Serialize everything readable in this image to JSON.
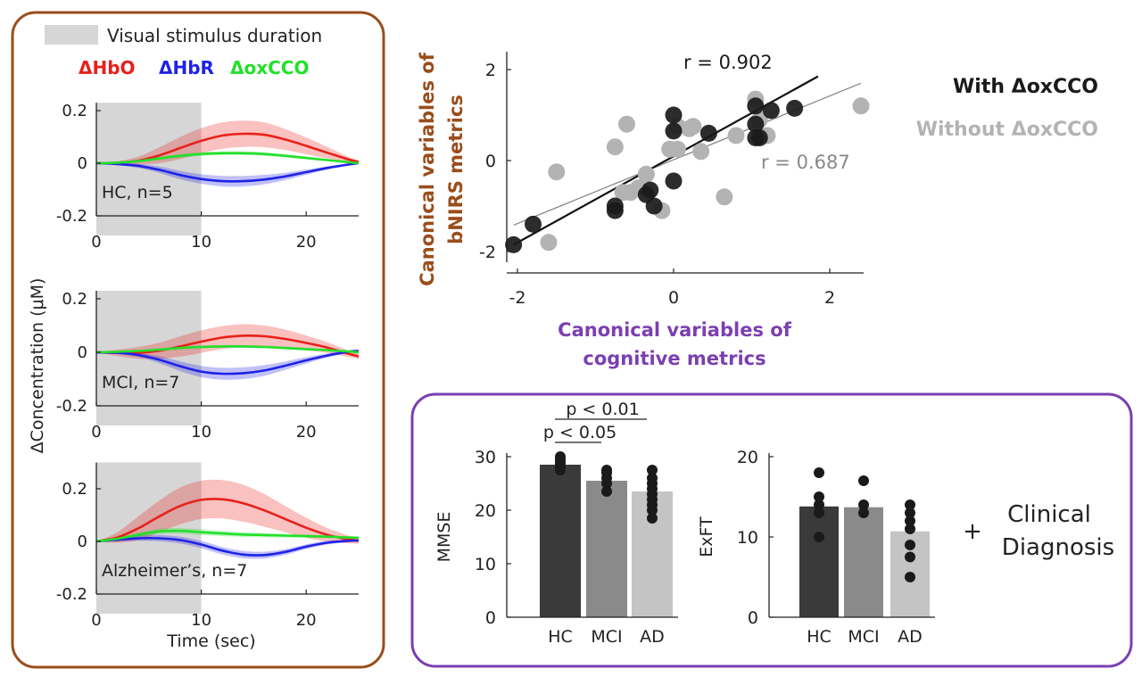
{
  "colors": {
    "hbo": "#e8201a",
    "hbr": "#1f22e6",
    "oxcco": "#22e02a",
    "stimulus": "#d6d6d6",
    "left_frame": "#9a4d1b",
    "right_frame": "#7b3fb0",
    "with_points": "#1a1a1a",
    "without_points": "#b3b3b3",
    "bar_hc": "#3a3a3a",
    "bar_mci": "#8a8a8a",
    "bar_ad": "#c4c4c4"
  },
  "left_panel": {
    "stimulus_label": "Visual stimulus duration",
    "legend": [
      {
        "label": "ΔHbO",
        "color_key": "hbo"
      },
      {
        "label": "ΔHbR",
        "color_key": "hbr"
      },
      {
        "label": "ΔoxCCO",
        "color_key": "oxcco"
      }
    ],
    "ylabel": "ΔConcentration (μM)",
    "xlabel": "Time (sec)"
  },
  "right_panel": {
    "plus": "+",
    "diagnosis_line1": "Clinical",
    "diagnosis_line2": "Diagnosis"
  },
  "chart_data": [
    {
      "type": "line",
      "label": "HC, n=5",
      "x_ticks": [
        0,
        10,
        20
      ],
      "y_ticks": [
        -0.2,
        0,
        0.2
      ],
      "y_tick_labels": [
        "-0.2",
        "0",
        "0.2"
      ],
      "xlim": [
        0,
        25
      ],
      "ylim": [
        -0.2,
        0.23
      ],
      "stimulus": [
        0,
        10
      ],
      "x": [
        0,
        2,
        4,
        6,
        8,
        10,
        12,
        14,
        16,
        18,
        20,
        22,
        24,
        25
      ],
      "series": [
        {
          "color_key": "hbo",
          "values": [
            0,
            0.002,
            0.01,
            0.03,
            0.058,
            0.085,
            0.105,
            0.112,
            0.108,
            0.09,
            0.066,
            0.04,
            0.015,
            0.005
          ],
          "band": [
            0,
            0.005,
            0.015,
            0.03,
            0.042,
            0.048,
            0.05,
            0.05,
            0.047,
            0.04,
            0.032,
            0.022,
            0.01,
            0.005
          ]
        },
        {
          "color_key": "hbr",
          "values": [
            0,
            -0.003,
            -0.01,
            -0.025,
            -0.045,
            -0.06,
            -0.068,
            -0.068,
            -0.062,
            -0.05,
            -0.034,
            -0.018,
            -0.005,
            0
          ],
          "band": [
            0,
            0.004,
            0.008,
            0.012,
            0.016,
            0.018,
            0.02,
            0.02,
            0.018,
            0.014,
            0.01,
            0.006,
            0.003,
            0.002
          ]
        },
        {
          "color_key": "oxcco",
          "values": [
            0,
            0.002,
            0.008,
            0.018,
            0.028,
            0.035,
            0.038,
            0.038,
            0.035,
            0.028,
            0.02,
            0.012,
            0.004,
            0
          ],
          "band": [
            0,
            0.003,
            0.005,
            0.006,
            0.007,
            0.007,
            0.007,
            0.007,
            0.007,
            0.006,
            0.005,
            0.004,
            0.003,
            0.002
          ]
        }
      ]
    },
    {
      "type": "line",
      "label": "MCI, n=7",
      "x_ticks": [
        0,
        10,
        20
      ],
      "y_ticks": [
        -0.2,
        0,
        0.2
      ],
      "y_tick_labels": [
        "-0.2",
        "0",
        "0.2"
      ],
      "xlim": [
        0,
        25
      ],
      "ylim": [
        -0.2,
        0.23
      ],
      "stimulus": [
        0,
        10
      ],
      "x": [
        0,
        2,
        4,
        6,
        8,
        10,
        12,
        14,
        16,
        18,
        20,
        22,
        24,
        25
      ],
      "series": [
        {
          "color_key": "hbo",
          "values": [
            0,
            -0.002,
            -0.002,
            0.006,
            0.022,
            0.04,
            0.055,
            0.062,
            0.06,
            0.05,
            0.035,
            0.018,
            -0.005,
            -0.015
          ],
          "band": [
            0,
            0.012,
            0.022,
            0.03,
            0.038,
            0.042,
            0.043,
            0.043,
            0.04,
            0.035,
            0.028,
            0.02,
            0.012,
            0.01
          ]
        },
        {
          "color_key": "hbr",
          "values": [
            0,
            -0.002,
            -0.01,
            -0.028,
            -0.052,
            -0.072,
            -0.08,
            -0.078,
            -0.068,
            -0.05,
            -0.03,
            -0.012,
            0.002,
            0.005
          ],
          "band": [
            0,
            0.004,
            0.008,
            0.013,
            0.018,
            0.021,
            0.022,
            0.022,
            0.02,
            0.016,
            0.012,
            0.008,
            0.005,
            0.004
          ]
        },
        {
          "color_key": "oxcco",
          "values": [
            0,
            0.002,
            0.005,
            0.01,
            0.016,
            0.02,
            0.022,
            0.022,
            0.02,
            0.016,
            0.012,
            0.008,
            0.003,
            0
          ],
          "band": [
            0,
            0.003,
            0.004,
            0.005,
            0.005,
            0.005,
            0.005,
            0.005,
            0.005,
            0.005,
            0.004,
            0.003,
            0.003,
            0.002
          ]
        }
      ]
    },
    {
      "type": "line",
      "label": "Alzheimer’s, n=7",
      "x_ticks": [
        0,
        10,
        20
      ],
      "y_ticks": [
        -0.2,
        0,
        0.2
      ],
      "y_tick_labels": [
        "-0.2",
        "0",
        "0.2"
      ],
      "xlim": [
        0,
        25
      ],
      "ylim": [
        -0.2,
        0.3
      ],
      "stimulus": [
        0,
        10
      ],
      "x": [
        0,
        2,
        4,
        6,
        8,
        10,
        12,
        14,
        16,
        18,
        20,
        22,
        24,
        25
      ],
      "series": [
        {
          "color_key": "hbo",
          "values": [
            0,
            0.015,
            0.05,
            0.095,
            0.135,
            0.158,
            0.16,
            0.145,
            0.118,
            0.085,
            0.052,
            0.025,
            0.008,
            0.003
          ],
          "band": [
            0,
            0.02,
            0.045,
            0.06,
            0.07,
            0.073,
            0.073,
            0.07,
            0.062,
            0.05,
            0.038,
            0.026,
            0.015,
            0.012
          ]
        },
        {
          "color_key": "hbr",
          "values": [
            0,
            0.006,
            0.012,
            0.012,
            0.005,
            -0.012,
            -0.035,
            -0.05,
            -0.052,
            -0.04,
            -0.02,
            -0.005,
            0.002,
            0.003
          ],
          "band": [
            0,
            0.006,
            0.01,
            0.012,
            0.013,
            0.014,
            0.014,
            0.014,
            0.013,
            0.011,
            0.009,
            0.007,
            0.005,
            0.004
          ]
        },
        {
          "color_key": "oxcco",
          "values": [
            0,
            0.01,
            0.025,
            0.038,
            0.04,
            0.035,
            0.03,
            0.026,
            0.024,
            0.022,
            0.02,
            0.018,
            0.015,
            0.014
          ],
          "band": [
            0,
            0.005,
            0.008,
            0.01,
            0.011,
            0.011,
            0.01,
            0.009,
            0.008,
            0.007,
            0.006,
            0.005,
            0.004,
            0.004
          ]
        }
      ]
    },
    {
      "type": "scatter",
      "xlabel": [
        "Canonical variables of",
        "cognitive metrics"
      ],
      "ylabel": [
        "Canonical variables of",
        "bNIRS metrics"
      ],
      "xlim": [
        -2.1,
        2.5
      ],
      "ylim": [
        -2.15,
        2.15
      ],
      "x_ticks": [
        -2,
        0,
        2
      ],
      "x_tick_labels": [
        "-2",
        "0",
        "2"
      ],
      "y_ticks": [
        -2,
        0,
        2
      ],
      "y_tick_labels": [
        "-2",
        "0",
        "2"
      ],
      "legend": [
        {
          "label": "With ΔoxCCO",
          "color_key": "with_points"
        },
        {
          "label": "Without ΔoxCCO",
          "color_key": "without_points"
        }
      ],
      "annotations": [
        {
          "text": "r = 0.902",
          "color_key": "with_points"
        },
        {
          "text": "r = 0.687",
          "color": "#888888"
        }
      ],
      "series": [
        {
          "name": "Without ΔoxCCO",
          "color_key": "without_points",
          "fit": {
            "x": [
              -2.05,
              2.4
            ],
            "y": [
              -1.42,
              1.7
            ]
          },
          "x": [
            -1.5,
            -1.6,
            -0.6,
            -0.55,
            -0.75,
            -0.35,
            -0.45,
            0.05,
            -0.05,
            0.25,
            0.2,
            0.35,
            0.8,
            1.1,
            1.2,
            1.05,
            0.65,
            -0.15,
            2.4,
            -0.65,
            0.05
          ],
          "y": [
            -0.25,
            -1.8,
            0.8,
            -0.7,
            0.3,
            -0.3,
            -0.6,
            0.75,
            0.25,
            0.75,
            0.7,
            0.2,
            0.55,
            0.9,
            0.55,
            1.35,
            -0.8,
            -1.1,
            1.2,
            -0.7,
            0.25
          ]
        },
        {
          "name": "With ΔoxCCO",
          "color_key": "with_points",
          "fit": {
            "x": [
              -2.05,
              1.85
            ],
            "y": [
              -1.85,
              1.85
            ]
          },
          "x": [
            -2.05,
            -1.8,
            -0.75,
            -0.75,
            -0.3,
            -0.35,
            -0.25,
            0,
            0,
            0,
            0.45,
            1.05,
            1.05,
            1.1,
            1.25,
            1.55,
            1.05
          ],
          "y": [
            -1.85,
            -1.4,
            -1.0,
            -1.1,
            -0.65,
            -0.75,
            -1.0,
            0.65,
            1.0,
            -0.45,
            0.6,
            0.8,
            1.2,
            0.5,
            1.1,
            1.15,
            0.5
          ]
        }
      ]
    },
    {
      "type": "bar",
      "ylabel": "MMSE",
      "categories": [
        "HC",
        "MCI",
        "AD"
      ],
      "values": [
        28.5,
        25.5,
        23.5
      ],
      "ylim": [
        0,
        30
      ],
      "y_ticks": [
        0,
        10,
        20,
        30
      ],
      "y_tick_labels": [
        "0",
        "10",
        "20",
        "30"
      ],
      "points": [
        [
          30,
          29.5,
          29,
          28.5,
          28,
          27.5
        ],
        [
          27.5,
          27,
          26,
          25,
          23.5
        ],
        [
          27.5,
          26,
          25,
          24,
          23,
          22,
          21,
          20,
          18.5
        ]
      ],
      "significance": [
        {
          "from": 0,
          "to": 1,
          "text": "p < 0.05"
        },
        {
          "from": 0,
          "to": 2,
          "text": "p < 0.01"
        }
      ]
    },
    {
      "type": "bar",
      "ylabel": "ExFT",
      "categories": [
        "HC",
        "MCI",
        "AD"
      ],
      "values": [
        13.8,
        13.7,
        10.7
      ],
      "ylim": [
        0,
        20
      ],
      "y_ticks": [
        0,
        10,
        20
      ],
      "y_tick_labels": [
        "0",
        "10",
        "20"
      ],
      "points": [
        [
          18,
          15,
          14,
          13,
          10
        ],
        [
          17,
          14,
          13
        ],
        [
          14,
          13,
          12,
          11,
          9,
          7.5,
          5
        ]
      ]
    }
  ]
}
